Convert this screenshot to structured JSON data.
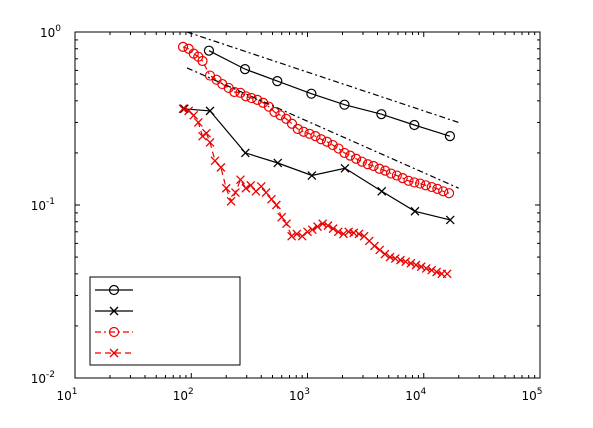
{
  "chart_data": {
    "type": "line",
    "title": "",
    "xlabel": "",
    "ylabel": "",
    "xscale": "log",
    "yscale": "log",
    "xlim": [
      10,
      100000
    ],
    "ylim": [
      0.01,
      1
    ],
    "grid": false,
    "box": true,
    "legend": {
      "position": "bottom-left",
      "labels_visible": false
    },
    "x_ticks": [
      {
        "base": "10",
        "exp": "1",
        "value": 10
      },
      {
        "base": "10",
        "exp": "2",
        "value": 100
      },
      {
        "base": "10",
        "exp": "3",
        "value": 1000
      },
      {
        "base": "10",
        "exp": "4",
        "value": 10000
      },
      {
        "base": "10",
        "exp": "5",
        "value": 100000
      }
    ],
    "y_ticks": [
      {
        "base": "10",
        "exp": "-2",
        "value": 0.01
      },
      {
        "base": "10",
        "exp": "-1",
        "value": 0.1
      },
      {
        "base": "10",
        "exp": "0",
        "value": 1
      }
    ],
    "series": [
      {
        "color": "#000000",
        "dash": "solid",
        "marker": "circle",
        "x": [
          142,
          290,
          550,
          1080,
          2080,
          4320,
          8300,
          16800
        ],
        "y": [
          0.78,
          0.61,
          0.52,
          0.44,
          0.38,
          0.335,
          0.29,
          0.25
        ]
      },
      {
        "color": "#000000",
        "dash": "solid",
        "marker": "x",
        "x": [
          87,
          145,
          292,
          555,
          1090,
          2100,
          4350,
          8400,
          16900
        ],
        "y": [
          0.36,
          0.35,
          0.2,
          0.175,
          0.148,
          0.163,
          0.12,
          0.092,
          0.082
        ]
      },
      {
        "color": "#ee0000",
        "dash": "dashdot",
        "marker": "circle",
        "x": [
          85,
          95,
          105,
          115,
          125,
          145,
          165,
          185,
          210,
          235,
          265,
          295,
          330,
          370,
          415,
          465,
          520,
          585,
          655,
          735,
          825,
          925,
          1040,
          1170,
          1310,
          1470,
          1650,
          1850,
          2080,
          2330,
          2620,
          2940,
          3300,
          3700,
          4150,
          4660,
          5230,
          5870,
          6590,
          7400,
          8300,
          9300,
          10400,
          11700,
          13100,
          14700,
          16500
        ],
        "y": [
          0.82,
          0.8,
          0.75,
          0.72,
          0.68,
          0.56,
          0.53,
          0.5,
          0.475,
          0.45,
          0.445,
          0.425,
          0.415,
          0.405,
          0.39,
          0.37,
          0.345,
          0.33,
          0.315,
          0.295,
          0.275,
          0.265,
          0.258,
          0.25,
          0.24,
          0.232,
          0.222,
          0.212,
          0.2,
          0.193,
          0.185,
          0.178,
          0.172,
          0.168,
          0.162,
          0.158,
          0.152,
          0.148,
          0.143,
          0.138,
          0.135,
          0.133,
          0.13,
          0.127,
          0.124,
          0.12,
          0.117
        ]
      },
      {
        "color": "#ee0000",
        "dash": "dashed",
        "marker": "x",
        "x": [
          85,
          95,
          105,
          115,
          125,
          135,
          145,
          160,
          180,
          200,
          220,
          240,
          265,
          295,
          325,
          360,
          400,
          440,
          490,
          540,
          600,
          660,
          730,
          810,
          900,
          1000,
          1100,
          1220,
          1350,
          1500,
          1660,
          1840,
          2040,
          2260,
          2500,
          2770,
          3070,
          3400,
          3770,
          4180,
          4630,
          5130,
          5690,
          6300,
          6990,
          7740,
          8580,
          9510,
          10500,
          11700,
          12900,
          14300,
          15900
        ],
        "y": [
          0.36,
          0.35,
          0.33,
          0.3,
          0.25,
          0.26,
          0.23,
          0.18,
          0.165,
          0.125,
          0.105,
          0.118,
          0.14,
          0.125,
          0.13,
          0.12,
          0.128,
          0.118,
          0.108,
          0.1,
          0.085,
          0.078,
          0.066,
          0.068,
          0.066,
          0.07,
          0.072,
          0.075,
          0.078,
          0.076,
          0.073,
          0.07,
          0.068,
          0.07,
          0.069,
          0.068,
          0.066,
          0.062,
          0.058,
          0.055,
          0.052,
          0.05,
          0.049,
          0.048,
          0.047,
          0.046,
          0.045,
          0.044,
          0.043,
          0.042,
          0.041,
          0.04,
          0.04
        ]
      },
      {
        "color": "#000000",
        "dash": "dashdot",
        "marker": "none",
        "x": [
          92,
          20000
        ],
        "y": [
          1.0,
          0.3
        ]
      },
      {
        "color": "#000000",
        "dash": "dashdot",
        "marker": "none",
        "x": [
          92,
          20000
        ],
        "y": [
          0.62,
          0.125
        ]
      }
    ]
  }
}
